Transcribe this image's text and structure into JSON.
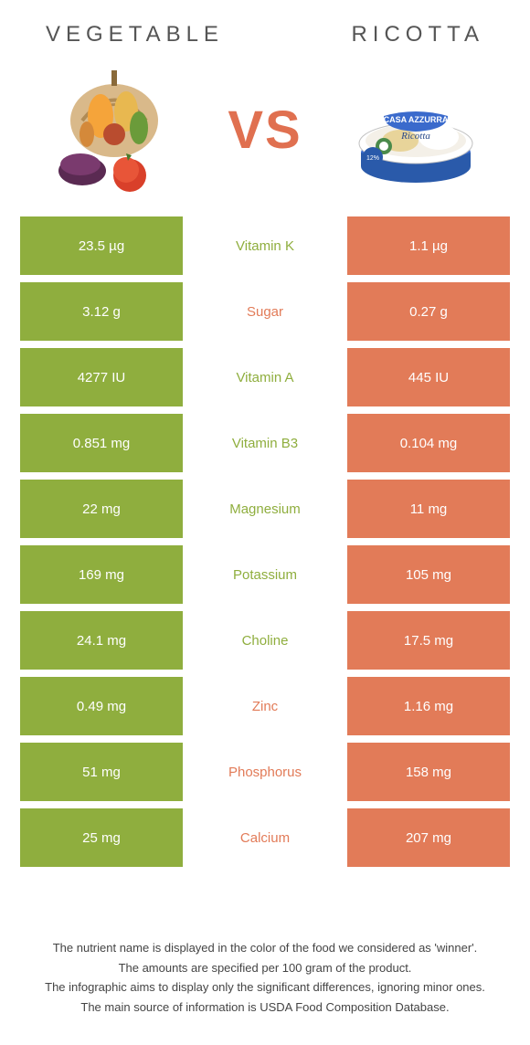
{
  "header": {
    "left": "VEGETABLE",
    "right": "RICOTTA",
    "vs": "VS"
  },
  "colors": {
    "green": "#8fae3e",
    "orange": "#e27b58",
    "vs": "#e07050",
    "title": "#555555",
    "footer": "#444444",
    "background": "#ffffff"
  },
  "rows": [
    {
      "left": "23.5 µg",
      "mid": "Vitamin K",
      "winner": "green",
      "right": "1.1 µg"
    },
    {
      "left": "3.12 g",
      "mid": "Sugar",
      "winner": "orange",
      "right": "0.27 g"
    },
    {
      "left": "4277 IU",
      "mid": "Vitamin A",
      "winner": "green",
      "right": "445 IU"
    },
    {
      "left": "0.851 mg",
      "mid": "Vitamin B3",
      "winner": "green",
      "right": "0.104 mg"
    },
    {
      "left": "22 mg",
      "mid": "Magnesium",
      "winner": "green",
      "right": "11 mg"
    },
    {
      "left": "169 mg",
      "mid": "Potassium",
      "winner": "green",
      "right": "105 mg"
    },
    {
      "left": "24.1 mg",
      "mid": "Choline",
      "winner": "green",
      "right": "17.5 mg"
    },
    {
      "left": "0.49 mg",
      "mid": "Zinc",
      "winner": "orange",
      "right": "1.16 mg"
    },
    {
      "left": "51 mg",
      "mid": "Phosphorus",
      "winner": "orange",
      "right": "158 mg"
    },
    {
      "left": "25 mg",
      "mid": "Calcium",
      "winner": "orange",
      "right": "207 mg"
    }
  ],
  "footer": {
    "line1": "The nutrient name is displayed in the color of the food we considered as 'winner'.",
    "line2": "The amounts are specified per 100 gram of the product.",
    "line3": "The infographic aims to display only the significant differences, ignoring minor ones.",
    "line4": "The main source of information is USDA Food Composition Database."
  }
}
